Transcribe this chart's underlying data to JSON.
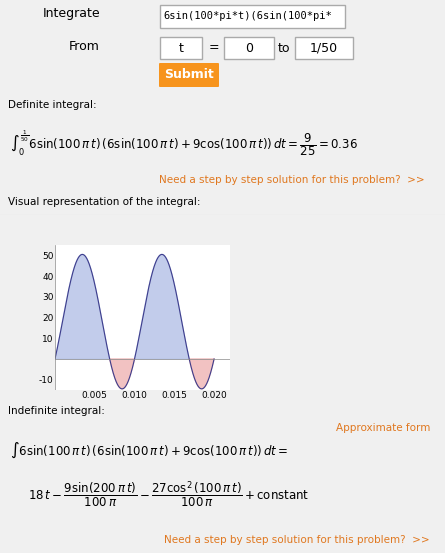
{
  "bg_color": "#f0f0f0",
  "submit_color": "#f7941d",
  "step_link_color": "#e07820",
  "step_link_text": "Need a step by step solution for this problem?  >>",
  "approx_form_text": "Approximate form",
  "line_color": "#3d3d8c",
  "fill_pos_color": "#b8c4e8",
  "fill_neg_color": "#f0b8b8",
  "plot_xlim": [
    0,
    0.022
  ],
  "plot_ylim": [
    -15,
    55
  ],
  "plot_xticks": [
    0.005,
    0.01,
    0.015,
    0.02
  ],
  "plot_yticks": [
    -10,
    10,
    20,
    30,
    40,
    50
  ]
}
